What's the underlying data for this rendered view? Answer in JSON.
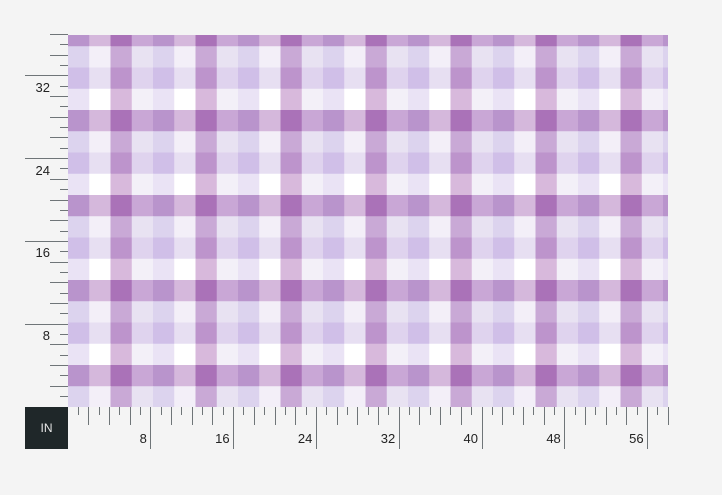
{
  "unit_label": "IN",
  "pattern": {
    "colors": [
      [
        "#b994cc",
        "#d5b8dc",
        "#aa72b8",
        "#c9a7d6"
      ],
      [
        "#dcd3ee",
        "#f3eff8",
        "#c9a9d6",
        "#e8e2f2"
      ],
      [
        "#d0bfe8",
        "#e7dff2",
        "#bd94cc",
        "#dfd3ee"
      ],
      [
        "#eae3f5",
        "#ffffff",
        "#d8b9dc",
        "#f3f0f8"
      ]
    ]
  },
  "ruler": {
    "x_labels": [
      "8",
      "16",
      "24",
      "32",
      "40",
      "48",
      "56"
    ],
    "y_labels": [
      "8",
      "16",
      "24",
      "32"
    ]
  }
}
